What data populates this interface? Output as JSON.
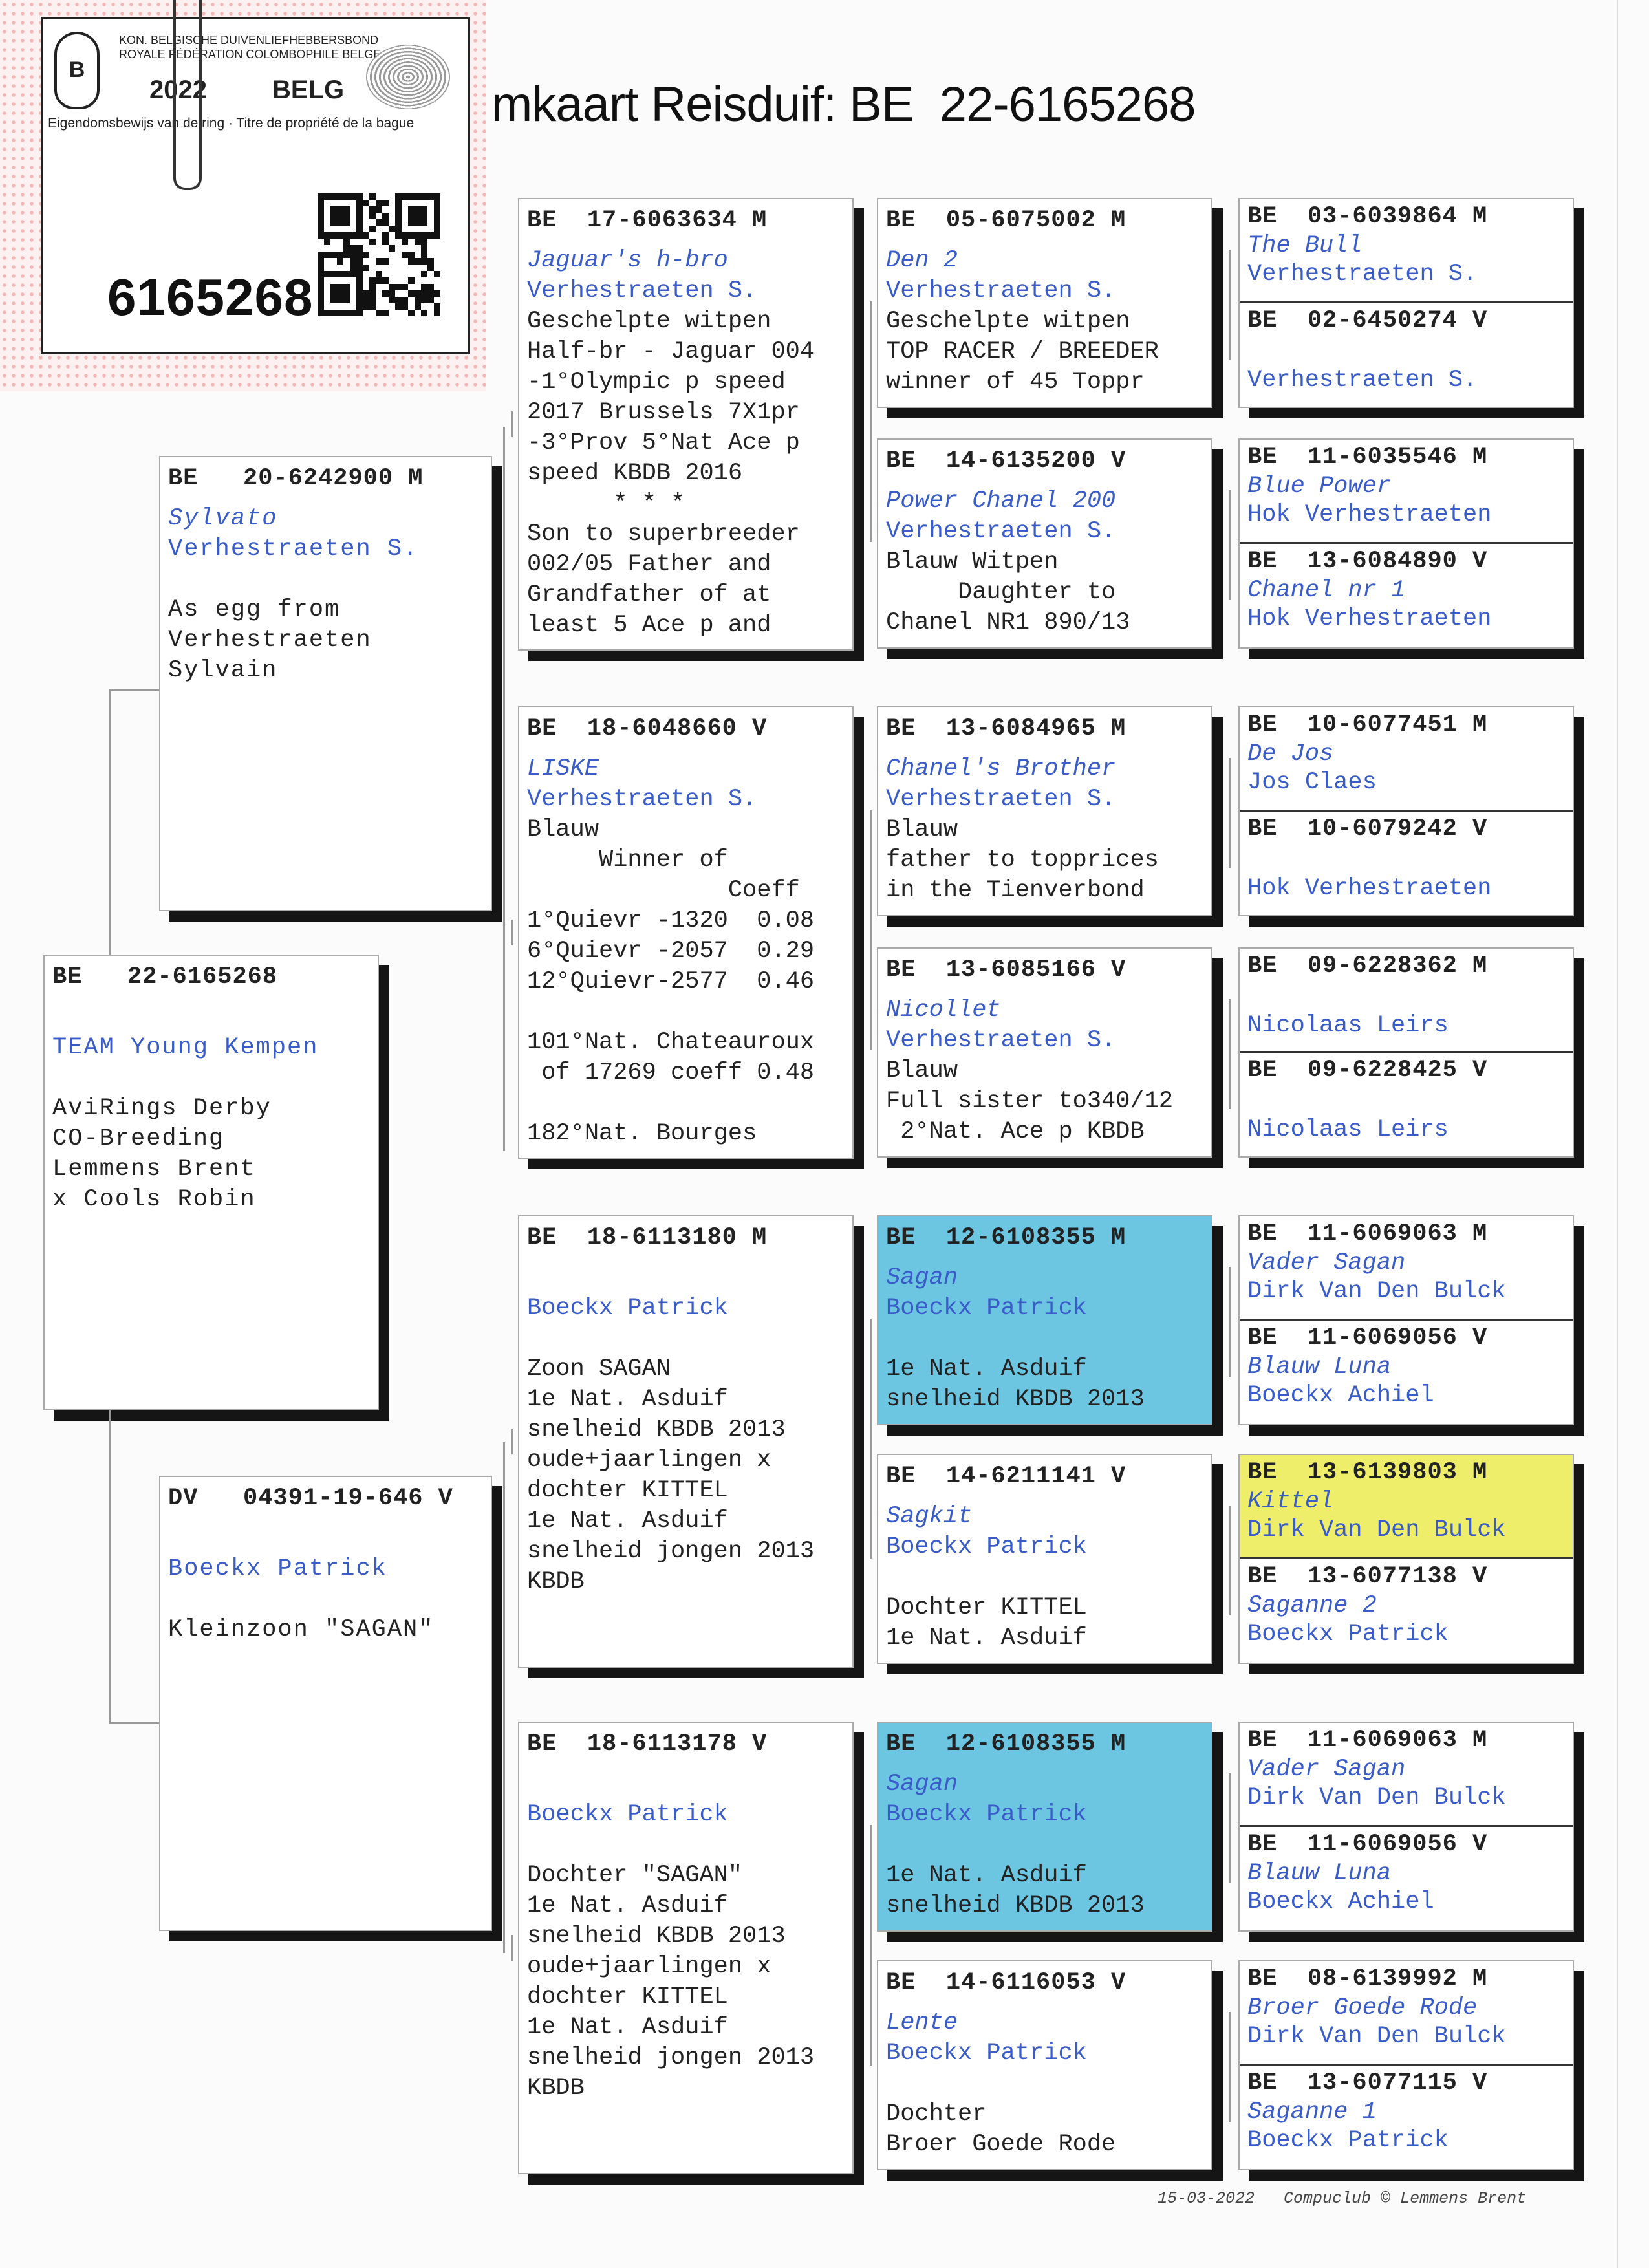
{
  "title": "mkaart Reisduif: BE  22-6165268",
  "ring_card": {
    "org_line1": "KON. BELGISCHE DUIVENLIEFHEBBERSBOND",
    "org_line2": "ROYALE FÉDÉRATION COLOMBOPHILE BELGE",
    "year": "2022",
    "country": "BELG",
    "caption": "Eigendomsbewijs van de ring · Titre de propriété de la bague",
    "number": "6165268",
    "logo_letter": "B"
  },
  "colors": {
    "name_blue": "#3a5cc8",
    "highlight_blue": "#6cc6e2",
    "highlight_yellow": "#eeee6a"
  },
  "subject": {
    "ring": "BE   22-6165268",
    "lines": [
      {
        "k": "gap"
      },
      {
        "t": "TEAM Young Kempen",
        "k": "o"
      },
      {
        "k": "gap"
      },
      {
        "t": "AviRings Derby",
        "k": "x"
      },
      {
        "t": "CO-Breeding",
        "k": "x"
      },
      {
        "t": "Lemmens Brent",
        "k": "x"
      },
      {
        "t": "x Cools Robin",
        "k": "x"
      }
    ]
  },
  "sire": {
    "ring": "BE   20-6242900 M",
    "lines": [
      {
        "t": "Sylvato",
        "k": "n"
      },
      {
        "t": "Verhestraeten S.",
        "k": "o"
      },
      {
        "k": "gap"
      },
      {
        "t": "As egg from",
        "k": "x"
      },
      {
        "t": "Verhestraeten",
        "k": "x"
      },
      {
        "t": "Sylvain",
        "k": "x"
      }
    ]
  },
  "dam": {
    "ring": "DV   04391-19-646 V",
    "lines": [
      {
        "k": "gap"
      },
      {
        "t": "Boeckx Patrick",
        "k": "o"
      },
      {
        "k": "gap"
      },
      {
        "t": "Kleinzoon \"SAGAN\"",
        "k": "x"
      }
    ]
  },
  "gen2": [
    {
      "ring": "BE  17-6063634 M",
      "lines": [
        {
          "t": "Jaguar's h-bro",
          "k": "n"
        },
        {
          "t": "Verhestraeten S.",
          "k": "o"
        },
        {
          "t": "Geschelpte witpen",
          "k": "x"
        },
        {
          "t": "Half-br - Jaguar 004",
          "k": "x"
        },
        {
          "t": "-1°Olympic p speed",
          "k": "x"
        },
        {
          "t": "2017 Brussels 7X1pr",
          "k": "x"
        },
        {
          "t": "-3°Prov 5°Nat Ace p",
          "k": "x"
        },
        {
          "t": "speed KBDB 2016",
          "k": "x"
        },
        {
          "t": "      * * *",
          "k": "x"
        },
        {
          "t": "Son to superbreeder",
          "k": "x"
        },
        {
          "t": "002/05 Father and",
          "k": "x"
        },
        {
          "t": "Grandfather of at",
          "k": "x"
        },
        {
          "t": "least 5 Ace p and",
          "k": "x"
        }
      ]
    },
    {
      "ring": "BE  18-6048660 V",
      "lines": [
        {
          "t": "LISKE",
          "k": "n"
        },
        {
          "t": "Verhestraeten S.",
          "k": "o"
        },
        {
          "t": "Blauw",
          "k": "x"
        },
        {
          "t": "     Winner of",
          "k": "x"
        },
        {
          "t": "              Coeff",
          "k": "x"
        },
        {
          "t": "1°Quievr -1320  0.08",
          "k": "x"
        },
        {
          "t": "6°Quievr -2057  0.29",
          "k": "x"
        },
        {
          "t": "12°Quievr-2577  0.46",
          "k": "x"
        },
        {
          "k": "gap"
        },
        {
          "t": "101°Nat. Chateauroux",
          "k": "x"
        },
        {
          "t": " of 17269 coeff 0.48",
          "k": "x"
        },
        {
          "k": "gap"
        },
        {
          "t": "182°Nat. Bourges",
          "k": "x"
        }
      ]
    },
    {
      "ring": "BE  18-6113180 M",
      "lines": [
        {
          "k": "gap"
        },
        {
          "t": "Boeckx Patrick",
          "k": "o"
        },
        {
          "k": "gap"
        },
        {
          "t": "Zoon SAGAN",
          "k": "x"
        },
        {
          "t": "1e Nat. Asduif",
          "k": "x"
        },
        {
          "t": "snelheid KBDB 2013",
          "k": "x"
        },
        {
          "t": "oude+jaarlingen x",
          "k": "x"
        },
        {
          "t": "dochter KITTEL",
          "k": "x"
        },
        {
          "t": "1e Nat. Asduif",
          "k": "x"
        },
        {
          "t": "snelheid jongen 2013",
          "k": "x"
        },
        {
          "t": "KBDB",
          "k": "x"
        }
      ]
    },
    {
      "ring": "BE  18-6113178 V",
      "lines": [
        {
          "k": "gap"
        },
        {
          "t": "Boeckx Patrick",
          "k": "o"
        },
        {
          "k": "gap"
        },
        {
          "t": "Dochter \"SAGAN\"",
          "k": "x"
        },
        {
          "t": "1e Nat. Asduif",
          "k": "x"
        },
        {
          "t": "snelheid KBDB 2013",
          "k": "x"
        },
        {
          "t": "oude+jaarlingen x",
          "k": "x"
        },
        {
          "t": "dochter KITTEL",
          "k": "x"
        },
        {
          "t": "1e Nat. Asduif",
          "k": "x"
        },
        {
          "t": "snelheid jongen 2013",
          "k": "x"
        },
        {
          "t": "KBDB",
          "k": "x"
        }
      ]
    }
  ],
  "gen3": [
    {
      "ring": "BE  05-6075002 M",
      "lines": [
        {
          "t": "Den 2",
          "k": "n"
        },
        {
          "t": "Verhestraeten S.",
          "k": "o"
        },
        {
          "t": "Geschelpte witpen",
          "k": "x"
        },
        {
          "t": "TOP RACER / BREEDER",
          "k": "x"
        },
        {
          "t": "winner of 45 Toppr",
          "k": "x"
        }
      ]
    },
    {
      "ring": "BE  14-6135200 V",
      "lines": [
        {
          "t": "Power Chanel 200",
          "k": "n"
        },
        {
          "t": "Verhestraeten S.",
          "k": "o"
        },
        {
          "t": "Blauw Witpen",
          "k": "x"
        },
        {
          "t": "     Daughter to",
          "k": "x"
        },
        {
          "t": "Chanel NR1 890/13",
          "k": "x"
        }
      ]
    },
    {
      "ring": "BE  13-6084965 M",
      "lines": [
        {
          "t": "Chanel's Brother",
          "k": "n"
        },
        {
          "t": "Verhestraeten S.",
          "k": "o"
        },
        {
          "t": "Blauw",
          "k": "x"
        },
        {
          "t": "father to topprices",
          "k": "x"
        },
        {
          "t": "in the Tienverbond",
          "k": "x"
        }
      ]
    },
    {
      "ring": "BE  13-6085166 V",
      "lines": [
        {
          "t": "Nicollet",
          "k": "n"
        },
        {
          "t": "Verhestraeten S.",
          "k": "o"
        },
        {
          "t": "Blauw",
          "k": "x"
        },
        {
          "t": "Full sister to340/12",
          "k": "x"
        },
        {
          "t": " 2°Nat. Ace p KBDB",
          "k": "x"
        }
      ]
    },
    {
      "ring": "BE  12-6108355 M",
      "highlight": "blue",
      "lines": [
        {
          "t": "Sagan",
          "k": "n"
        },
        {
          "t": "Boeckx Patrick",
          "k": "o"
        },
        {
          "k": "gap"
        },
        {
          "t": "1e Nat. Asduif",
          "k": "x"
        },
        {
          "t": "snelheid KBDB 2013",
          "k": "x"
        }
      ]
    },
    {
      "ring": "BE  14-6211141 V",
      "lines": [
        {
          "t": "Sagkit",
          "k": "n"
        },
        {
          "t": "Boeckx Patrick",
          "k": "o"
        },
        {
          "k": "gap"
        },
        {
          "t": "Dochter KITTEL",
          "k": "x"
        },
        {
          "t": "1e Nat. Asduif",
          "k": "x"
        }
      ]
    },
    {
      "ring": "BE  12-6108355 M",
      "highlight": "blue",
      "lines": [
        {
          "t": "Sagan",
          "k": "n"
        },
        {
          "t": "Boeckx Patrick",
          "k": "o"
        },
        {
          "k": "gap"
        },
        {
          "t": "1e Nat. Asduif",
          "k": "x"
        },
        {
          "t": "snelheid KBDB 2013",
          "k": "x"
        }
      ]
    },
    {
      "ring": "BE  14-6116053 V",
      "lines": [
        {
          "t": "Lente",
          "k": "n"
        },
        {
          "t": "Boeckx Patrick",
          "k": "o"
        },
        {
          "k": "gap"
        },
        {
          "t": "Dochter",
          "k": "x"
        },
        {
          "t": "Broer Goede Rode",
          "k": "x"
        }
      ]
    }
  ],
  "gen4": [
    {
      "ring": "BE  03-6039864 M",
      "lines": [
        {
          "t": "The Bull",
          "k": "n"
        },
        {
          "t": "Verhestraeten S.",
          "k": "o"
        }
      ]
    },
    {
      "ring": "BE  02-6450274 V",
      "lines": [
        {
          "k": "gap"
        },
        {
          "t": "Verhestraeten S.",
          "k": "o"
        }
      ]
    },
    {
      "ring": "BE  11-6035546 M",
      "lines": [
        {
          "t": "Blue Power",
          "k": "n"
        },
        {
          "t": "Hok Verhestraeten",
          "k": "o"
        }
      ]
    },
    {
      "ring": "BE  13-6084890 V",
      "lines": [
        {
          "t": "Chanel nr 1",
          "k": "n"
        },
        {
          "t": "Hok Verhestraeten",
          "k": "o"
        }
      ]
    },
    {
      "ring": "BE  10-6077451 M",
      "lines": [
        {
          "t": "De Jos",
          "k": "n"
        },
        {
          "t": "Jos Claes",
          "k": "o"
        }
      ]
    },
    {
      "ring": "BE  10-6079242 V",
      "lines": [
        {
          "k": "gap"
        },
        {
          "t": "Hok Verhestraeten",
          "k": "o"
        }
      ]
    },
    {
      "ring": "BE  09-6228362 M",
      "lines": [
        {
          "k": "gap"
        },
        {
          "t": "Nicolaas Leirs",
          "k": "o"
        }
      ]
    },
    {
      "ring": "BE  09-6228425 V",
      "lines": [
        {
          "k": "gap"
        },
        {
          "t": "Nicolaas Leirs",
          "k": "o"
        }
      ]
    },
    {
      "ring": "BE  11-6069063 M",
      "lines": [
        {
          "t": "Vader Sagan",
          "k": "n"
        },
        {
          "t": "Dirk Van Den Bulck",
          "k": "o"
        }
      ]
    },
    {
      "ring": "BE  11-6069056 V",
      "lines": [
        {
          "t": "Blauw Luna",
          "k": "n"
        },
        {
          "t": "Boeckx Achiel",
          "k": "o"
        }
      ]
    },
    {
      "ring": "BE  13-6139803 M",
      "highlight": "yellow",
      "lines": [
        {
          "t": "Kittel",
          "k": "n"
        },
        {
          "t": "Dirk Van Den Bulck",
          "k": "o"
        }
      ]
    },
    {
      "ring": "BE  13-6077138 V",
      "lines": [
        {
          "t": "Saganne 2",
          "k": "n"
        },
        {
          "t": "Boeckx Patrick",
          "k": "o"
        }
      ]
    },
    {
      "ring": "BE  11-6069063 M",
      "lines": [
        {
          "t": "Vader Sagan",
          "k": "n"
        },
        {
          "t": "Dirk Van Den Bulck",
          "k": "o"
        }
      ]
    },
    {
      "ring": "BE  11-6069056 V",
      "lines": [
        {
          "t": "Blauw Luna",
          "k": "n"
        },
        {
          "t": "Boeckx Achiel",
          "k": "o"
        }
      ]
    },
    {
      "ring": "BE  08-6139992 M",
      "lines": [
        {
          "t": "Broer Goede Rode",
          "k": "n"
        },
        {
          "t": "Dirk Van Den Bulck",
          "k": "o"
        }
      ]
    },
    {
      "ring": "BE  13-6077115 V",
      "lines": [
        {
          "t": "Saganne 1",
          "k": "n"
        },
        {
          "t": "Boeckx Patrick",
          "k": "o"
        }
      ]
    }
  ],
  "footer": "15-03-2022   Compuclub © Lemmens Brent"
}
